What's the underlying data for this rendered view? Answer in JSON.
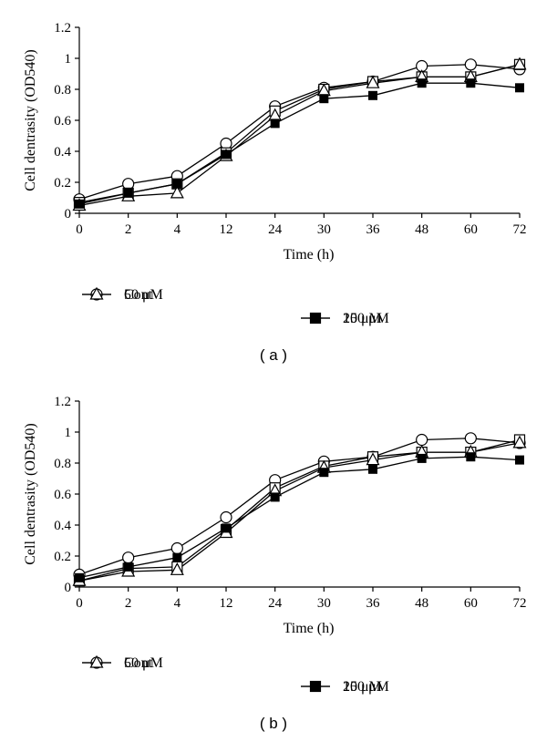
{
  "chart_data": [
    {
      "type": "line",
      "panel_label": "( a )",
      "xlabel": "Time (h)",
      "ylabel": "Cell dentrasity (OD540)",
      "categories": [
        "0",
        "2",
        "4",
        "12",
        "24",
        "30",
        "36",
        "48",
        "60",
        "72"
      ],
      "ylim": [
        0,
        1.2
      ],
      "yticks": [
        "0",
        "0.2",
        "0.4",
        "0.6",
        "0.8",
        "1",
        "1.2"
      ],
      "grid": false,
      "legend_position": "bottom",
      "series": [
        {
          "name": "Cont",
          "marker": "circle-open",
          "values": [
            0.09,
            0.19,
            0.24,
            0.45,
            0.69,
            0.81,
            0.85,
            0.95,
            0.96,
            0.93
          ]
        },
        {
          "name": "25 μM",
          "marker": "square-open",
          "values": [
            0.07,
            0.13,
            0.19,
            0.39,
            0.66,
            0.8,
            0.85,
            0.88,
            0.88,
            0.96
          ]
        },
        {
          "name": "50 μM",
          "marker": "triangle-open",
          "values": [
            0.05,
            0.11,
            0.13,
            0.37,
            0.63,
            0.79,
            0.84,
            0.88,
            0.88,
            0.96
          ]
        },
        {
          "name": "100 μM",
          "marker": "square-filled",
          "values": [
            0.06,
            0.13,
            0.19,
            0.38,
            0.58,
            0.74,
            0.76,
            0.84,
            0.84,
            0.81
          ]
        }
      ]
    },
    {
      "type": "line",
      "panel_label": "( b )",
      "xlabel": "Time (h)",
      "ylabel": "Cell dentrasity (OD540)",
      "categories": [
        "0",
        "2",
        "4",
        "12",
        "24",
        "30",
        "36",
        "48",
        "60",
        "72"
      ],
      "ylim": [
        0,
        1.2
      ],
      "yticks": [
        "0",
        "0.2",
        "0.4",
        "0.6",
        "0.8",
        "1",
        "1.2"
      ],
      "grid": false,
      "legend_position": "bottom",
      "series": [
        {
          "name": "Cont",
          "marker": "circle-open",
          "values": [
            0.08,
            0.19,
            0.25,
            0.45,
            0.69,
            0.81,
            0.84,
            0.95,
            0.96,
            0.93
          ]
        },
        {
          "name": "25 μM",
          "marker": "square-open",
          "values": [
            0.04,
            0.12,
            0.13,
            0.37,
            0.64,
            0.78,
            0.84,
            0.87,
            0.87,
            0.95
          ]
        },
        {
          "name": "50 μM",
          "marker": "triangle-open",
          "values": [
            0.04,
            0.1,
            0.11,
            0.35,
            0.62,
            0.77,
            0.82,
            0.87,
            0.87,
            0.93
          ]
        },
        {
          "name": "100 μM",
          "marker": "square-filled",
          "values": [
            0.06,
            0.13,
            0.19,
            0.38,
            0.58,
            0.74,
            0.76,
            0.83,
            0.84,
            0.82
          ]
        }
      ]
    }
  ]
}
